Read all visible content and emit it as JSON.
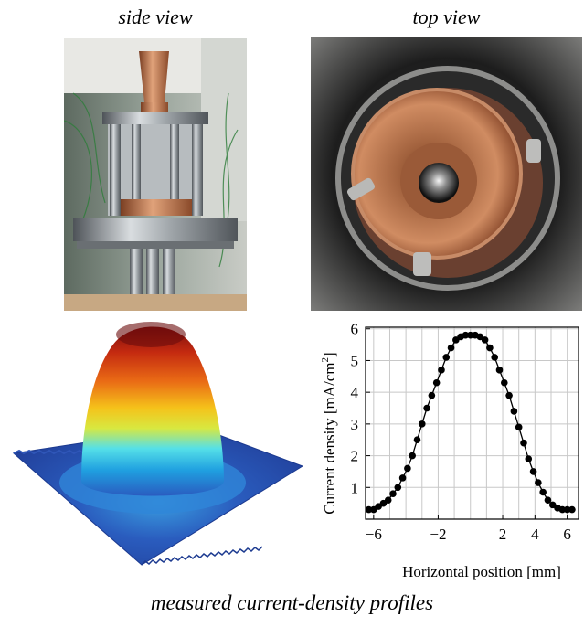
{
  "captions": {
    "side": "side view",
    "top": "top view",
    "bottom": "measured current-density profiles"
  },
  "chart_data": {
    "type": "scatter",
    "xlabel": "Horizontal position [mm]",
    "ylabel_prefix": "Current density [mA/cm",
    "ylabel_sup": "2",
    "ylabel_suffix": "]",
    "xlim": [
      -6.5,
      6.7
    ],
    "ylim": [
      0,
      6.05
    ],
    "xticks": [
      "−6",
      "−2",
      "2",
      "4",
      "6"
    ],
    "xtick_values": [
      -6,
      -2,
      2,
      4,
      6
    ],
    "yticks": [
      "1",
      "2",
      "3",
      "4",
      "5",
      "6"
    ],
    "ytick_values": [
      1,
      2,
      3,
      4,
      5,
      6
    ],
    "grid": true,
    "series": [
      {
        "x": [
          -6.3,
          -6.0,
          -5.7,
          -5.4,
          -5.1,
          -4.8,
          -4.5,
          -4.2,
          -3.9,
          -3.6,
          -3.3,
          -3.0,
          -2.7,
          -2.4,
          -2.1,
          -1.8,
          -1.5,
          -1.2,
          -0.9,
          -0.6,
          -0.3,
          0.0,
          0.3,
          0.6,
          0.9,
          1.2,
          1.5,
          1.8,
          2.1,
          2.4,
          2.7,
          3.0,
          3.3,
          3.6,
          3.9,
          4.2,
          4.5,
          4.8,
          5.1,
          5.4,
          5.7,
          6.0,
          6.3
        ],
        "y": [
          0.3,
          0.3,
          0.4,
          0.5,
          0.6,
          0.8,
          1.0,
          1.3,
          1.6,
          2.0,
          2.5,
          3.0,
          3.5,
          3.9,
          4.3,
          4.7,
          5.1,
          5.4,
          5.65,
          5.75,
          5.8,
          5.8,
          5.8,
          5.75,
          5.65,
          5.4,
          5.1,
          4.7,
          4.3,
          3.9,
          3.4,
          2.9,
          2.4,
          1.9,
          1.5,
          1.15,
          0.85,
          0.6,
          0.45,
          0.35,
          0.3,
          0.3,
          0.3
        ]
      }
    ]
  },
  "colors": {
    "plateau_blue": "#1f4fb0",
    "peak_red": "#a01010",
    "copper": "#b8734a"
  }
}
